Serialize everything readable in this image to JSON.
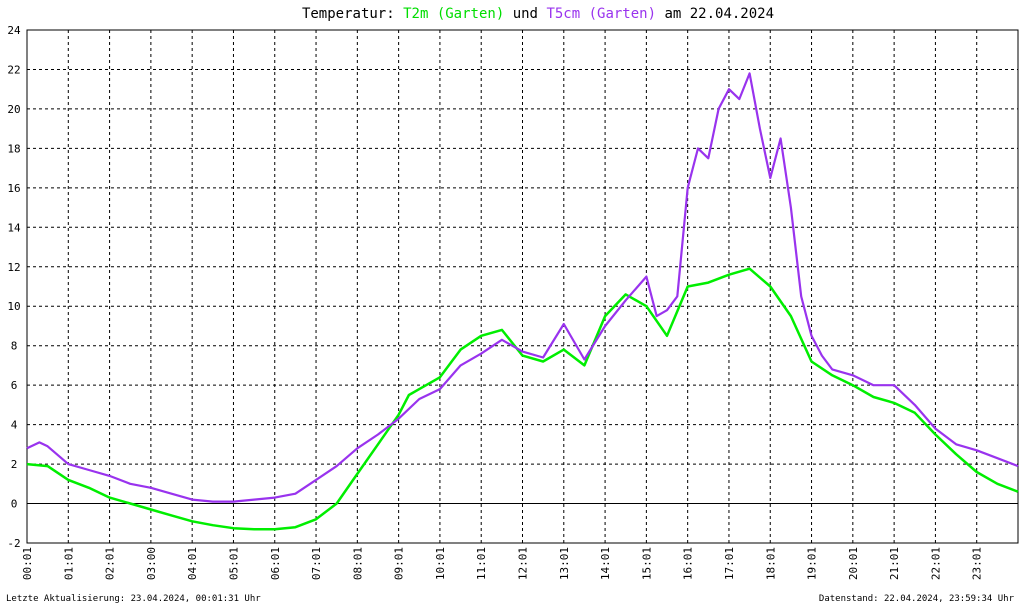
{
  "title": {
    "prefix": "Temperatur:",
    "series1": "T2m (Garten)",
    "connector": "und",
    "series2": "T5cm (Garten)",
    "suffix": "am 22.04.2024"
  },
  "footer": {
    "left": "Letzte Aktualisierung: 23.04.2024, 00:01:31 Uhr",
    "right": "Datenstand: 22.04.2024, 23:59:34 Uhr"
  },
  "colors": {
    "t2m": "#00ee00",
    "t5cm": "#9933ee",
    "zero_line": "#000000",
    "grid": "#000000"
  },
  "chart_data": {
    "type": "line",
    "title": "Temperatur: T2m (Garten) und T5cm (Garten) am 22.04.2024",
    "xlabel": "",
    "ylabel": "",
    "xlim": [
      0,
      24
    ],
    "ylim": [
      -2,
      24
    ],
    "grid": true,
    "x_tick_labels": [
      "00:01",
      "01:01",
      "02:01",
      "03:00",
      "04:01",
      "05:01",
      "06:01",
      "07:01",
      "08:01",
      "09:01",
      "10:01",
      "11:01",
      "12:01",
      "13:01",
      "14:01",
      "15:01",
      "16:01",
      "17:01",
      "18:01",
      "19:01",
      "20:01",
      "21:01",
      "22:01",
      "23:01"
    ],
    "y_ticks": [
      -2,
      0,
      2,
      4,
      6,
      8,
      10,
      12,
      14,
      16,
      18,
      20,
      22,
      24
    ],
    "series": [
      {
        "name": "T2m (Garten)",
        "color": "#00ee00",
        "x": [
          0,
          0.5,
          1,
          1.5,
          2,
          2.5,
          3,
          3.5,
          4,
          4.5,
          5,
          5.5,
          6,
          6.5,
          7,
          7.5,
          8,
          8.5,
          9,
          9.25,
          9.5,
          10,
          10.5,
          11,
          11.5,
          12,
          12.5,
          13,
          13.5,
          14,
          14.5,
          15,
          15.5,
          16,
          16.5,
          17,
          17.5,
          18,
          18.5,
          19,
          19.5,
          20,
          20.5,
          21,
          21.5,
          22,
          22.5,
          23,
          23.5,
          24
        ],
        "y": [
          2.0,
          1.9,
          1.2,
          0.8,
          0.3,
          0.0,
          -0.3,
          -0.6,
          -0.9,
          -1.1,
          -1.25,
          -1.3,
          -1.3,
          -1.2,
          -0.8,
          0.0,
          1.5,
          3.0,
          4.5,
          5.5,
          5.8,
          6.4,
          7.8,
          8.5,
          8.8,
          7.5,
          7.2,
          7.8,
          7.0,
          9.5,
          10.6,
          10.0,
          8.5,
          11.0,
          11.2,
          11.6,
          11.9,
          11.0,
          9.5,
          7.2,
          6.5,
          6.0,
          5.4,
          5.1,
          4.6,
          3.5,
          2.5,
          1.6,
          1.0,
          0.6
        ]
      },
      {
        "name": "T5cm (Garten)",
        "color": "#9933ee",
        "x": [
          0,
          0.3,
          0.5,
          1,
          1.5,
          2,
          2.5,
          3,
          3.5,
          4,
          4.5,
          5,
          5.5,
          6,
          6.5,
          7,
          7.5,
          8,
          8.5,
          9,
          9.5,
          10,
          10.5,
          11,
          11.5,
          12,
          12.5,
          13,
          13.5,
          14,
          14.5,
          15,
          15.25,
          15.5,
          15.75,
          16,
          16.25,
          16.5,
          16.75,
          17,
          17.25,
          17.5,
          17.75,
          18,
          18.25,
          18.5,
          18.75,
          19,
          19.25,
          19.5,
          20,
          20.5,
          21,
          21.5,
          22,
          22.5,
          23,
          23.5,
          24
        ],
        "y": [
          2.8,
          3.1,
          2.9,
          2.0,
          1.7,
          1.4,
          1.0,
          0.8,
          0.5,
          0.2,
          0.1,
          0.1,
          0.2,
          0.3,
          0.5,
          1.2,
          1.9,
          2.8,
          3.5,
          4.3,
          5.3,
          5.8,
          7.0,
          7.6,
          8.3,
          7.7,
          7.4,
          9.1,
          7.3,
          9.0,
          10.3,
          11.5,
          9.5,
          9.8,
          10.5,
          16.0,
          18.0,
          17.5,
          20.0,
          21.0,
          20.5,
          21.8,
          19.0,
          16.5,
          18.5,
          15.0,
          10.5,
          8.5,
          7.5,
          6.8,
          6.5,
          6.0,
          6.0,
          5.0,
          3.8,
          3.0,
          2.7,
          2.3,
          1.9
        ]
      }
    ]
  }
}
